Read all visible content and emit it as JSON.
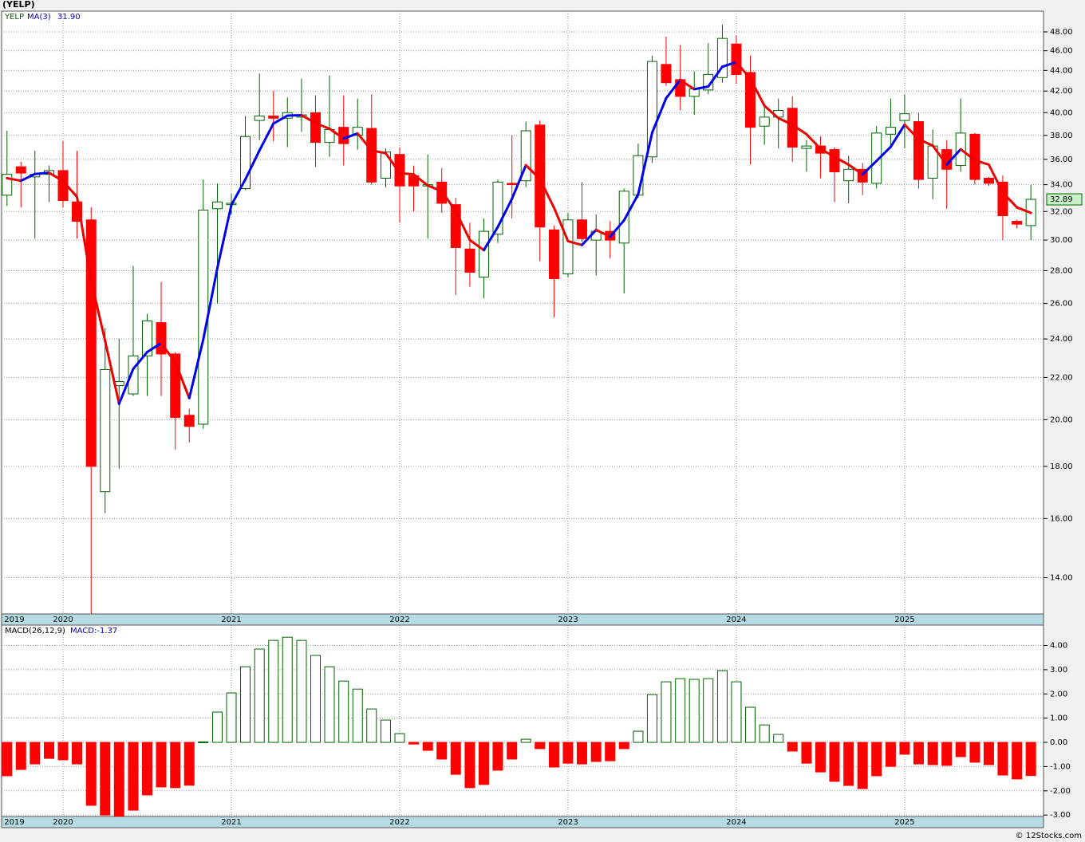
{
  "chart_data": [
    {
      "type": "candlestick",
      "title": "(YELP)",
      "symbol": "YELP",
      "x": [
        2019.667,
        2019.75,
        2019.833,
        2019.917,
        2020,
        2020.083,
        2020.167,
        2020.25,
        2020.333,
        2020.417,
        2020.5,
        2020.583,
        2020.667,
        2020.75,
        2020.833,
        2020.917,
        2021,
        2021.083,
        2021.167,
        2021.25,
        2021.333,
        2021.417,
        2021.5,
        2021.583,
        2021.667,
        2021.75,
        2021.833,
        2021.917,
        2022,
        2022.083,
        2022.167,
        2022.25,
        2022.333,
        2022.417,
        2022.5,
        2022.583,
        2022.667,
        2022.75,
        2022.833,
        2022.917,
        2023,
        2023.083,
        2023.167,
        2023.25,
        2023.333,
        2023.417,
        2023.5,
        2023.583,
        2023.667,
        2023.75,
        2023.833,
        2023.917,
        2024,
        2024.083,
        2024.167,
        2024.25,
        2024.333,
        2024.417,
        2024.5,
        2024.583,
        2024.667,
        2024.75,
        2024.833,
        2024.917,
        2025,
        2025.083,
        2025.167,
        2025.25,
        2025.333,
        2025.417,
        2025.5,
        2025.583,
        2025.667,
        2025.75
      ],
      "open": [
        33.2,
        35.4,
        34.6,
        34.8,
        35.1,
        32.7,
        31.4,
        17.0,
        21.6,
        21.2,
        23.1,
        24.9,
        23.2,
        20.2,
        19.8,
        32.2,
        32.5,
        33.7,
        39.3,
        39.7,
        39.5,
        39.6,
        40.0,
        37.4,
        38.7,
        38.0,
        38.6,
        34.5,
        36.4,
        34.7,
        33.9,
        34.2,
        32.5,
        29.4,
        27.6,
        30.4,
        34.1,
        34.3,
        38.9,
        30.7,
        27.8,
        31.4,
        30.0,
        30.6,
        29.8,
        33.2,
        36.2,
        44.6,
        43.1,
        41.5,
        42.1,
        43.3,
        46.7,
        43.8,
        38.8,
        39.6,
        40.4,
        36.9,
        37.1,
        36.8,
        34.3,
        35.2,
        34.1,
        38.1,
        39.3,
        39.2,
        34.5,
        36.8,
        35.5,
        38.1,
        34.5,
        34.2,
        31.3,
        31.0
      ],
      "high": [
        38.4,
        35.8,
        36.7,
        35.5,
        37.5,
        36.7,
        32.3,
        24.6,
        24.0,
        28.3,
        25.4,
        27.3,
        23.3,
        20.5,
        34.4,
        34.1,
        33.3,
        39.7,
        43.7,
        42.0,
        41.4,
        43.2,
        41.6,
        43.5,
        41.6,
        41.3,
        41.7,
        36.9,
        37.0,
        35.5,
        36.4,
        35.3,
        33.0,
        31.2,
        31.5,
        34.4,
        38.0,
        39.2,
        39.3,
        31.0,
        31.9,
        34.2,
        31.8,
        31.3,
        33.7,
        37.3,
        45.5,
        47.5,
        46.6,
        43.9,
        46.8,
        48.8,
        47.6,
        45.5,
        40.6,
        41.3,
        41.5,
        37.6,
        37.9,
        37.0,
        36.3,
        35.7,
        38.8,
        41.3,
        41.7,
        40.0,
        38.5,
        37.6,
        41.3,
        38.2,
        34.6,
        34.7,
        31.4,
        34.0
      ],
      "low": [
        32.4,
        32.3,
        30.1,
        32.7,
        32.3,
        30.1,
        12.9,
        16.2,
        17.9,
        21.1,
        21.1,
        21.1,
        18.7,
        19.0,
        19.6,
        26.0,
        31.8,
        33.6,
        37.6,
        37.5,
        37.0,
        38.3,
        35.4,
        36.2,
        35.5,
        36.8,
        34.0,
        33.8,
        31.2,
        32.0,
        30.1,
        31.9,
        26.5,
        27.0,
        26.3,
        29.8,
        31.5,
        33.8,
        28.6,
        25.2,
        27.6,
        29.9,
        27.7,
        28.8,
        26.6,
        33.0,
        35.7,
        42.5,
        40.2,
        39.8,
        41.7,
        42.8,
        42.7,
        35.6,
        37.2,
        36.9,
        35.8,
        35.0,
        34.5,
        32.7,
        32.6,
        33.2,
        33.7,
        36.9,
        36.9,
        33.7,
        32.9,
        32.2,
        35.0,
        34.0,
        33.9,
        30.0,
        30.8,
        30.0
      ],
      "close": [
        34.8,
        34.9,
        34.8,
        35.1,
        32.8,
        31.3,
        18.0,
        22.4,
        21.8,
        23.1,
        25.0,
        23.2,
        20.1,
        19.7,
        32.1,
        32.7,
        32.6,
        37.9,
        39.7,
        39.5,
        40.0,
        39.8,
        37.4,
        38.5,
        37.3,
        38.7,
        34.2,
        36.6,
        33.9,
        33.9,
        34.0,
        32.6,
        29.5,
        27.9,
        30.6,
        34.2,
        34.0,
        38.4,
        30.9,
        27.5,
        31.4,
        30.1,
        30.6,
        30.0,
        33.5,
        36.3,
        44.9,
        42.8,
        41.5,
        42.2,
        43.6,
        47.3,
        43.6,
        38.7,
        39.6,
        40.2,
        37.0,
        37.1,
        36.5,
        35.0,
        35.2,
        34.2,
        38.2,
        38.7,
        39.9,
        34.4,
        37.1,
        35.2,
        38.2,
        34.4,
        34.1,
        31.7,
        31.1,
        32.89
      ],
      "last_price_label": "32.89",
      "ma": {
        "name": "MA(3)",
        "last_label": "31.90",
        "up_color": "#0000ee",
        "down_color": "#ee0000",
        "values": [
          34.5,
          34.3,
          34.83,
          34.93,
          34.27,
          33.07,
          27.37,
          23.9,
          20.73,
          22.43,
          23.3,
          23.77,
          22.77,
          21.0,
          23.97,
          28.17,
          32.47,
          34.4,
          36.73,
          39.03,
          39.73,
          39.77,
          39.07,
          38.57,
          37.73,
          38.17,
          36.73,
          36.5,
          34.9,
          34.8,
          33.93,
          33.5,
          32.03,
          30.0,
          29.33,
          30.9,
          32.93,
          35.53,
          34.43,
          32.27,
          29.93,
          29.67,
          30.7,
          30.23,
          31.37,
          33.27,
          38.23,
          41.33,
          43.07,
          42.17,
          42.43,
          44.37,
          44.83,
          43.2,
          40.63,
          39.5,
          38.93,
          38.1,
          36.87,
          36.2,
          35.57,
          34.8,
          35.87,
          37.03,
          38.93,
          37.67,
          37.13,
          35.57,
          36.83,
          35.93,
          35.57,
          33.4,
          32.3,
          31.9
        ]
      },
      "up_color": "#006400",
      "down_color": "#ff0000",
      "log_scale": true,
      "grid": true,
      "xlim": [
        2019.635,
        2025.825
      ],
      "xticks": [
        2019,
        2020,
        2021,
        2022,
        2023,
        2024,
        2025
      ],
      "ylim": [
        12.9,
        50.3
      ],
      "yticks": [
        {
          "value": 14,
          "label": "14.00"
        },
        {
          "value": 16,
          "label": "16.00"
        },
        {
          "value": 18,
          "label": "18.00"
        },
        {
          "value": 20,
          "label": "20.00"
        },
        {
          "value": 22,
          "label": "22.00"
        },
        {
          "value": 24,
          "label": "24.00"
        },
        {
          "value": 26,
          "label": "26.00"
        },
        {
          "value": 28,
          "label": "28.00"
        },
        {
          "value": 30,
          "label": "30.00"
        },
        {
          "value": 32,
          "label": "32.00"
        },
        {
          "value": 34,
          "label": "34.00"
        },
        {
          "value": 36,
          "label": "36.00"
        },
        {
          "value": 38,
          "label": "38.00"
        },
        {
          "value": 40,
          "label": "40.00"
        },
        {
          "value": 42,
          "label": "42.00"
        },
        {
          "value": 44,
          "label": "44.00"
        },
        {
          "value": 46,
          "label": "46.00"
        },
        {
          "value": 48,
          "label": "48.00"
        }
      ]
    },
    {
      "type": "bar",
      "name": "MACD(26,12,9)",
      "value_label": "MACD:-1.37",
      "values": [
        -1.38,
        -1.12,
        -0.89,
        -0.66,
        -0.72,
        -0.89,
        -2.6,
        -3.0,
        -3.05,
        -2.8,
        -2.17,
        -1.84,
        -1.87,
        -1.77,
        0.02,
        1.25,
        2.04,
        3.12,
        3.85,
        4.21,
        4.34,
        4.21,
        3.59,
        3.12,
        2.53,
        2.2,
        1.38,
        0.92,
        0.36,
        -0.07,
        -0.33,
        -0.69,
        -1.32,
        -1.87,
        -1.74,
        -1.15,
        -0.69,
        0.13,
        -0.26,
        -1.02,
        -0.86,
        -0.89,
        -0.79,
        -0.76,
        -0.26,
        0.46,
        1.97,
        2.5,
        2.63,
        2.6,
        2.63,
        2.96,
        2.5,
        1.45,
        0.72,
        0.33,
        -0.36,
        -0.86,
        -1.22,
        -1.61,
        -1.78,
        -1.91,
        -1.38,
        -0.99,
        -0.49,
        -0.89,
        -0.92,
        -0.95,
        -0.59,
        -0.82,
        -0.92,
        -1.35,
        -1.51,
        -1.37
      ],
      "up_color": "#006400",
      "down_color": "#ff0000",
      "grid": true,
      "xlim": [
        2019.635,
        2025.825
      ],
      "xticks": [
        2019,
        2020,
        2021,
        2022,
        2023,
        2024,
        2025
      ],
      "ylim": [
        -3.06,
        4.84
      ],
      "yticks": [
        {
          "value": -3,
          "label": "-3.00"
        },
        {
          "value": -2,
          "label": "-2.00"
        },
        {
          "value": -1,
          "label": "-1.00"
        },
        {
          "value": 0,
          "label": "0.00"
        },
        {
          "value": 1,
          "label": "1.00"
        },
        {
          "value": 2,
          "label": "2.00"
        },
        {
          "value": 3,
          "label": "3.00"
        },
        {
          "value": 4,
          "label": "4.00"
        }
      ]
    }
  ],
  "footer": "© 12Stocks.com"
}
